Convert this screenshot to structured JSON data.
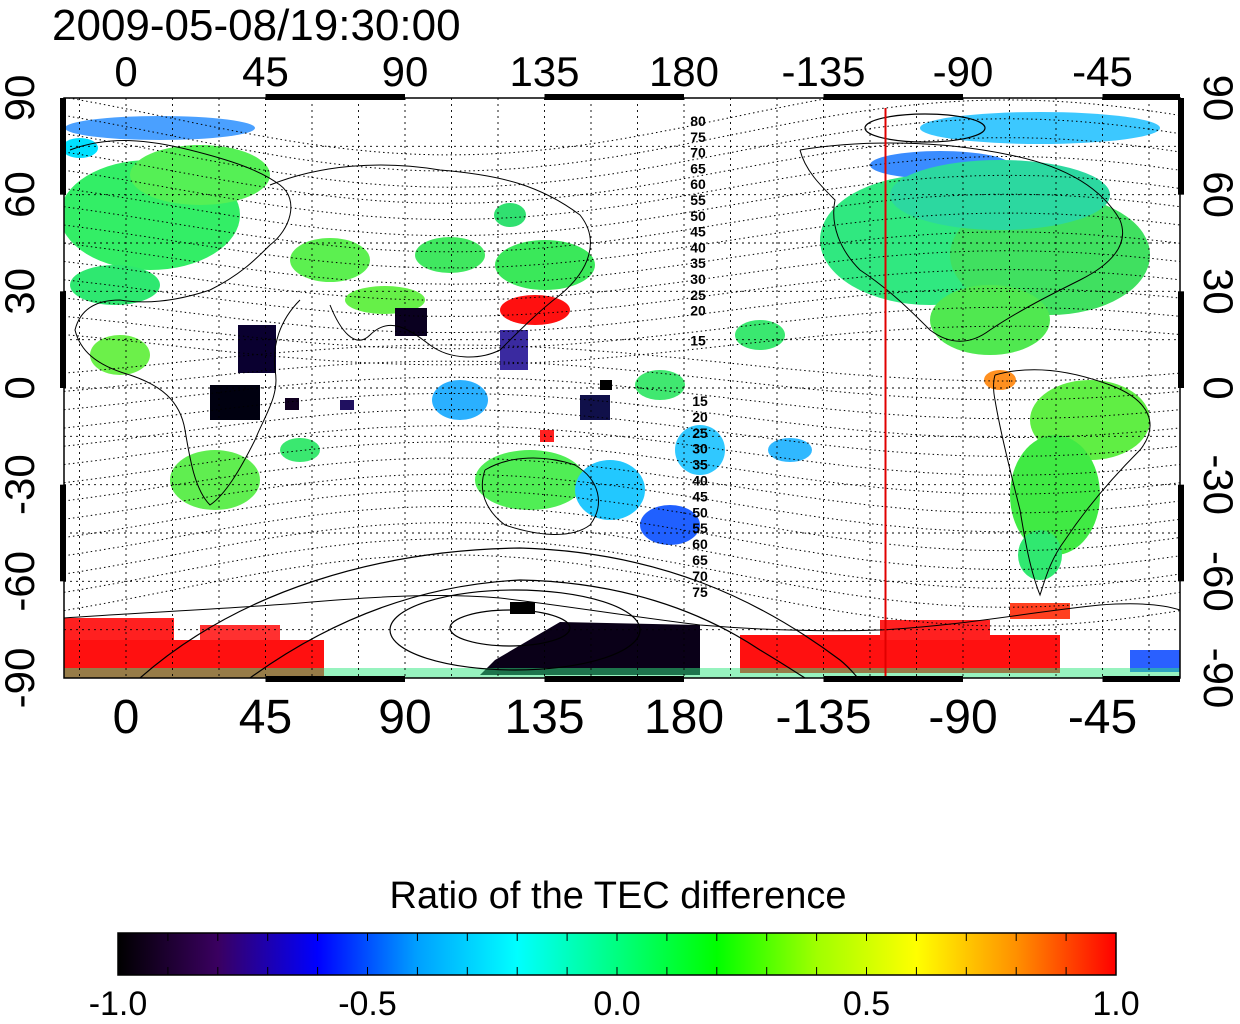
{
  "title": "2009-05-08/19:30:00",
  "axes": {
    "lon_ticks": [
      "0",
      "45",
      "90",
      "135",
      "180",
      "-135",
      "-90",
      "-45"
    ],
    "lat_ticks": [
      "90",
      "60",
      "30",
      "0",
      "-30",
      "-60",
      "-90"
    ]
  },
  "contours": {
    "north_labels": [
      "80",
      "75",
      "70",
      "65",
      "60",
      "55",
      "50",
      "45",
      "40",
      "35",
      "30",
      "25",
      "20",
      "15"
    ],
    "south_labels": [
      "15",
      "20",
      "25",
      "30",
      "35",
      "40",
      "45",
      "50",
      "55",
      "60",
      "65",
      "70",
      "75"
    ]
  },
  "marker_line": {
    "longitude": -115,
    "color": "#e00000"
  },
  "colorbar": {
    "title": "Ratio of the TEC difference",
    "range": [
      -1.0,
      1.0
    ],
    "tick_labels": [
      "-1.0",
      "-0.5",
      "0.0",
      "0.5",
      "1.0"
    ],
    "colors": [
      "#000000",
      "#3a0060",
      "#0000ff",
      "#00a0ff",
      "#00ffff",
      "#00ff80",
      "#00ff00",
      "#a0ff00",
      "#ffff00",
      "#ff9000",
      "#ff0000"
    ]
  }
}
